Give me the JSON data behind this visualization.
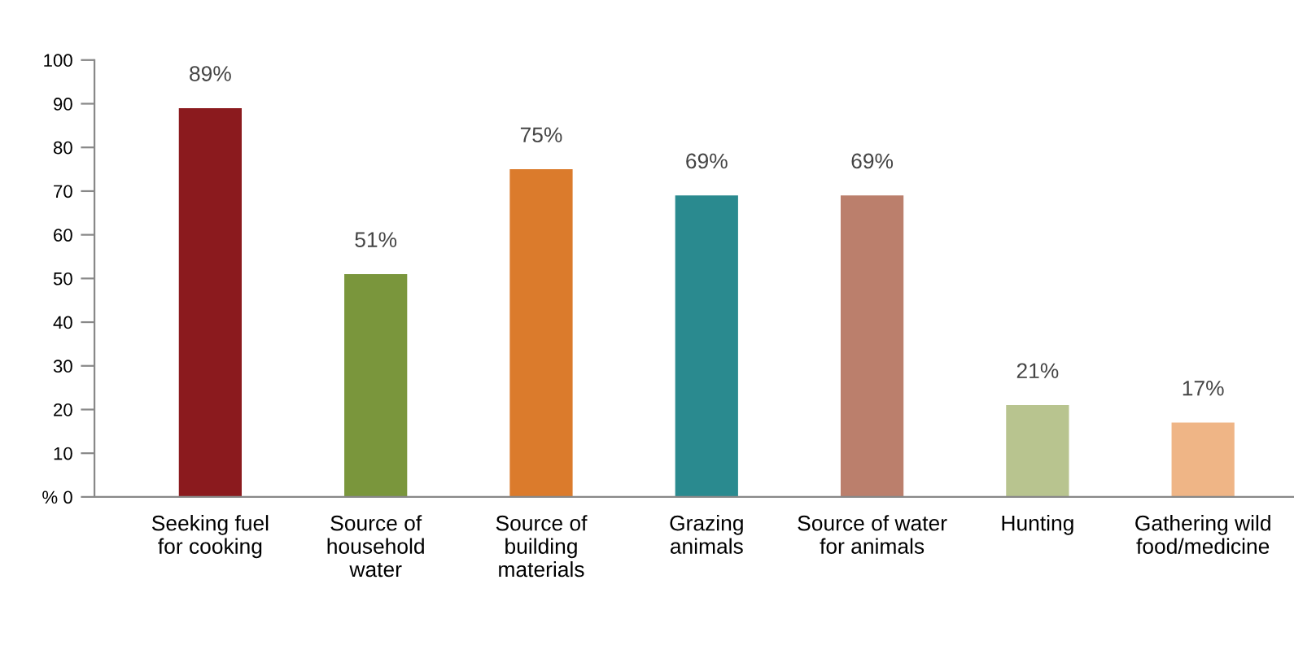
{
  "chart_data": {
    "type": "bar",
    "categories": [
      "Seeking fuel\nfor cooking",
      "Source of\nhousehold\nwater",
      "Source of\nbuilding\nmaterials",
      "Grazing\nanimals",
      "Source of water\nfor animals",
      "Hunting",
      "Gathering wild\nfood/medicine"
    ],
    "values": [
      89,
      51,
      75,
      69,
      69,
      21,
      17
    ],
    "colors": [
      "#8b1a1e",
      "#7a963c",
      "#db7b2c",
      "#2a8a8f",
      "#bb7f6c",
      "#b8c48f",
      "#efb586"
    ],
    "value_labels": [
      "89%",
      "51%",
      "75%",
      "69%",
      "69%",
      "21%",
      "17%"
    ],
    "ylim": [
      0,
      100
    ],
    "yticks": [
      {
        "value": 0,
        "label": "% 0"
      },
      10,
      20,
      30,
      40,
      50,
      60,
      70,
      80,
      90,
      100
    ],
    "grid": false,
    "legend": false
  }
}
